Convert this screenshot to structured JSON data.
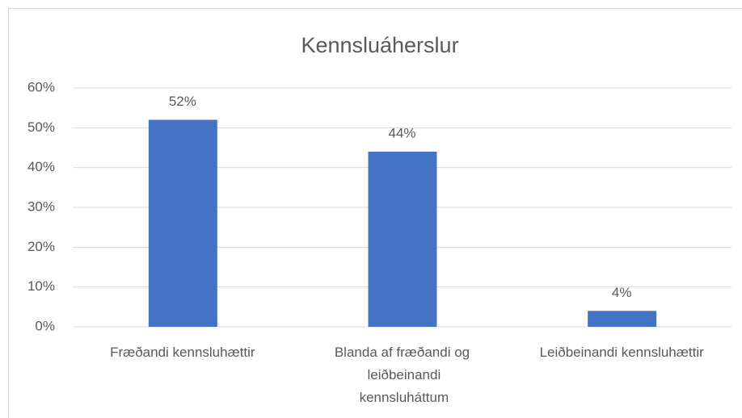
{
  "chart_data": {
    "type": "bar",
    "title": "Kennsluáherslur",
    "categories": [
      "Fræðandi kennsluhættir",
      "Blanda af fræðandi og leiðbeinandi kennsluháttum",
      "Leiðbeinandi kennsluhættir"
    ],
    "values": [
      52,
      44,
      4
    ],
    "value_labels": [
      "52%",
      "44%",
      "4%"
    ],
    "color": "#4472c4",
    "ylim": [
      0,
      60
    ],
    "yticks": [
      {
        "value": 0,
        "label": "0%"
      },
      {
        "value": 10,
        "label": "10%"
      },
      {
        "value": 20,
        "label": "20%"
      },
      {
        "value": 30,
        "label": "30%"
      },
      {
        "value": 40,
        "label": "40%"
      },
      {
        "value": 50,
        "label": "50%"
      },
      {
        "value": 60,
        "label": "60%"
      }
    ],
    "grid": true
  }
}
